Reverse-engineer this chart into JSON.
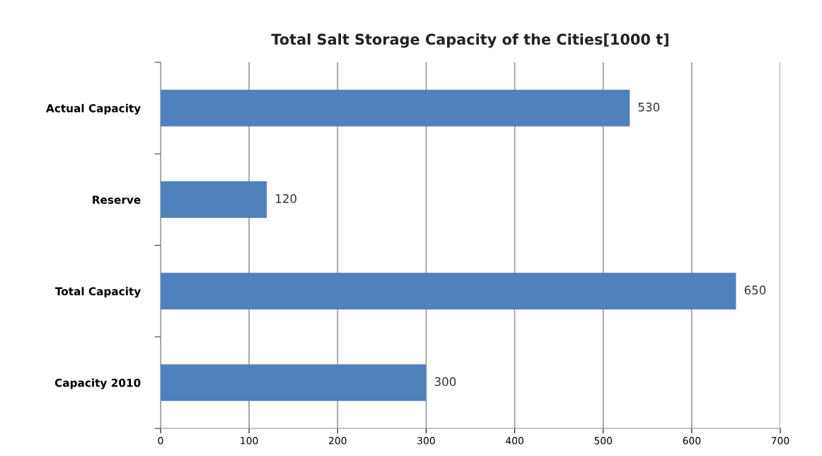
{
  "chart_data": {
    "type": "bar",
    "orientation": "horizontal",
    "title": "Total Salt Storage Capacity of the Cities[1000 t]",
    "categories": [
      "Actual Capacity",
      "Reserve",
      "Total Capacity",
      "Capacity 2010"
    ],
    "values": [
      530,
      120,
      650,
      300
    ],
    "color": "#4f81bd",
    "xlim": [
      0,
      700
    ],
    "xticks": [
      0,
      100,
      200,
      300,
      400,
      500,
      600,
      700
    ],
    "grid": "x",
    "data_labels": true
  }
}
